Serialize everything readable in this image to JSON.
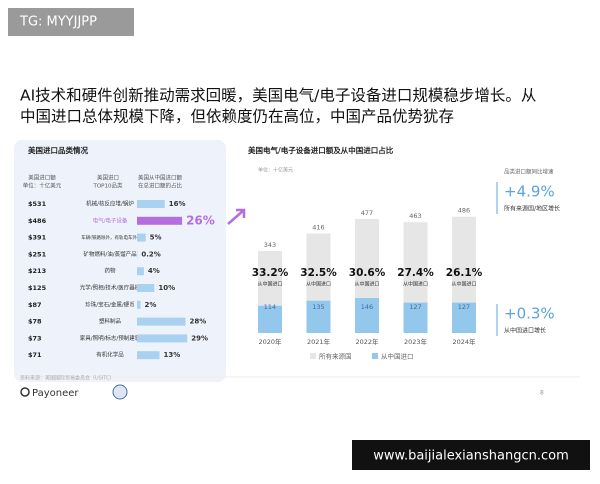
{
  "watermark": "TG: MYYJJPP",
  "site": "www.baijialexianshangcn.com",
  "title_lines": [
    "AI技术和硬件创新推动需求回暖，美国电气/电子设备进口规模稳步增长。从",
    "中国进口总体规模下降，但依赖度仍在高位，中国产品优势犹存"
  ],
  "source": "资料来源：美国国际贸易委员会（USITC）",
  "logo": "Payoneer",
  "page_number": "8",
  "chart_data": [
    {
      "type": "hbar",
      "title": "美国进口品类情况",
      "headers": [
        "美国进口额",
        "单位：十亿美元",
        "美国进口",
        "TOP10品类",
        "美国从中国进口额",
        "在总进口额的占比"
      ],
      "categories": [
        "机械/核反应堆/锅炉",
        "电气/电子设备",
        "车辆(铁路除外，有轨电车外)",
        "矿物燃料/油/蒸馏产品",
        "药物",
        "光学/照相/技术/医疗器械",
        "珍珠/宝石/金属/硬币",
        "塑料制品",
        "家具/照明/标志/预制建筑",
        "有机化学品"
      ],
      "import_values": [
        531,
        486,
        391,
        251,
        213,
        125,
        87,
        78,
        73,
        71
      ],
      "import_labels": [
        "$531",
        "$486",
        "$391",
        "$251",
        "$213",
        "$125",
        "$87",
        "$78",
        "$73",
        "$71"
      ],
      "values": [
        16,
        26,
        5,
        0.2,
        4,
        10,
        2,
        28,
        29,
        13
      ],
      "value_labels": [
        "16%",
        "26%",
        "5%",
        "0.2%",
        "4%",
        "10%",
        "2%",
        "28%",
        "29%",
        "13%"
      ],
      "color": "#a9d2f0",
      "highlight_color": "#b56ee0",
      "xlim": [
        0,
        30
      ]
    },
    {
      "type": "overlap-bar",
      "title": "美国电气/电子设备进口额及从中国进口占比",
      "unit": "单位：十亿美元",
      "categories": [
        "2020年",
        "2021年",
        "2022年",
        "2023年",
        "2024年"
      ],
      "series": [
        {
          "name": "所有来源国",
          "color": "#e6e6e6",
          "values": [
            343,
            416,
            477,
            463,
            486
          ]
        },
        {
          "name": "从中国进口",
          "color": "#93c7ec",
          "values": [
            114,
            135,
            146,
            127,
            127
          ]
        }
      ],
      "share": {
        "label": "从中国进口",
        "values": [
          33.2,
          32.5,
          30.6,
          27.4,
          26.1
        ],
        "value_labels": [
          "33.2%",
          "32.5%",
          "30.6%",
          "27.4%",
          "26.1%"
        ]
      },
      "growth_title": "品类进口额同比增速",
      "growth": [
        {
          "value": 4.9,
          "label": "+4.9%",
          "text": "所有来源国/地区增长"
        },
        {
          "value": 0.3,
          "label": "+0.3%",
          "text": "从中国进口增长"
        }
      ],
      "ylim": [
        0,
        560
      ]
    }
  ]
}
